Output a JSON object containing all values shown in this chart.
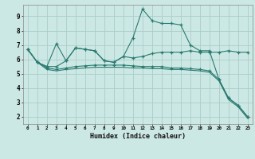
{
  "xlabel": "Humidex (Indice chaleur)",
  "xlim": [
    -0.5,
    23.5
  ],
  "ylim": [
    1.5,
    9.8
  ],
  "yticks": [
    2,
    3,
    4,
    5,
    6,
    7,
    8,
    9
  ],
  "xticks": [
    0,
    1,
    2,
    3,
    4,
    5,
    6,
    7,
    8,
    9,
    10,
    11,
    12,
    13,
    14,
    15,
    16,
    17,
    18,
    19,
    20,
    21,
    22,
    23
  ],
  "bg_color": "#cce8e4",
  "grid_color": "#aaccca",
  "line_color": "#2a7a70",
  "series1": [
    6.7,
    5.8,
    5.5,
    7.1,
    5.9,
    6.8,
    6.7,
    6.6,
    5.9,
    5.8,
    6.2,
    6.1,
    6.2,
    6.4,
    6.5,
    6.5,
    6.5,
    6.6,
    6.5,
    6.5,
    6.5,
    6.6,
    6.5,
    6.5
  ],
  "series2": [
    6.7,
    5.8,
    5.5,
    5.5,
    5.9,
    6.8,
    6.7,
    6.6,
    5.9,
    5.8,
    6.2,
    7.5,
    9.5,
    8.7,
    8.5,
    8.5,
    8.4,
    7.0,
    6.6,
    6.6,
    4.6,
    3.3,
    2.8,
    2.0
  ],
  "series3": [
    6.7,
    5.8,
    5.4,
    5.3,
    5.4,
    5.5,
    5.55,
    5.6,
    5.6,
    5.6,
    5.6,
    5.55,
    5.5,
    5.5,
    5.5,
    5.4,
    5.4,
    5.35,
    5.3,
    5.2,
    4.6,
    3.3,
    2.8,
    2.0
  ],
  "series4": [
    6.7,
    5.8,
    5.3,
    5.2,
    5.3,
    5.35,
    5.4,
    5.45,
    5.45,
    5.45,
    5.45,
    5.4,
    5.4,
    5.35,
    5.35,
    5.3,
    5.3,
    5.25,
    5.2,
    5.1,
    4.5,
    3.2,
    2.7,
    1.9
  ]
}
